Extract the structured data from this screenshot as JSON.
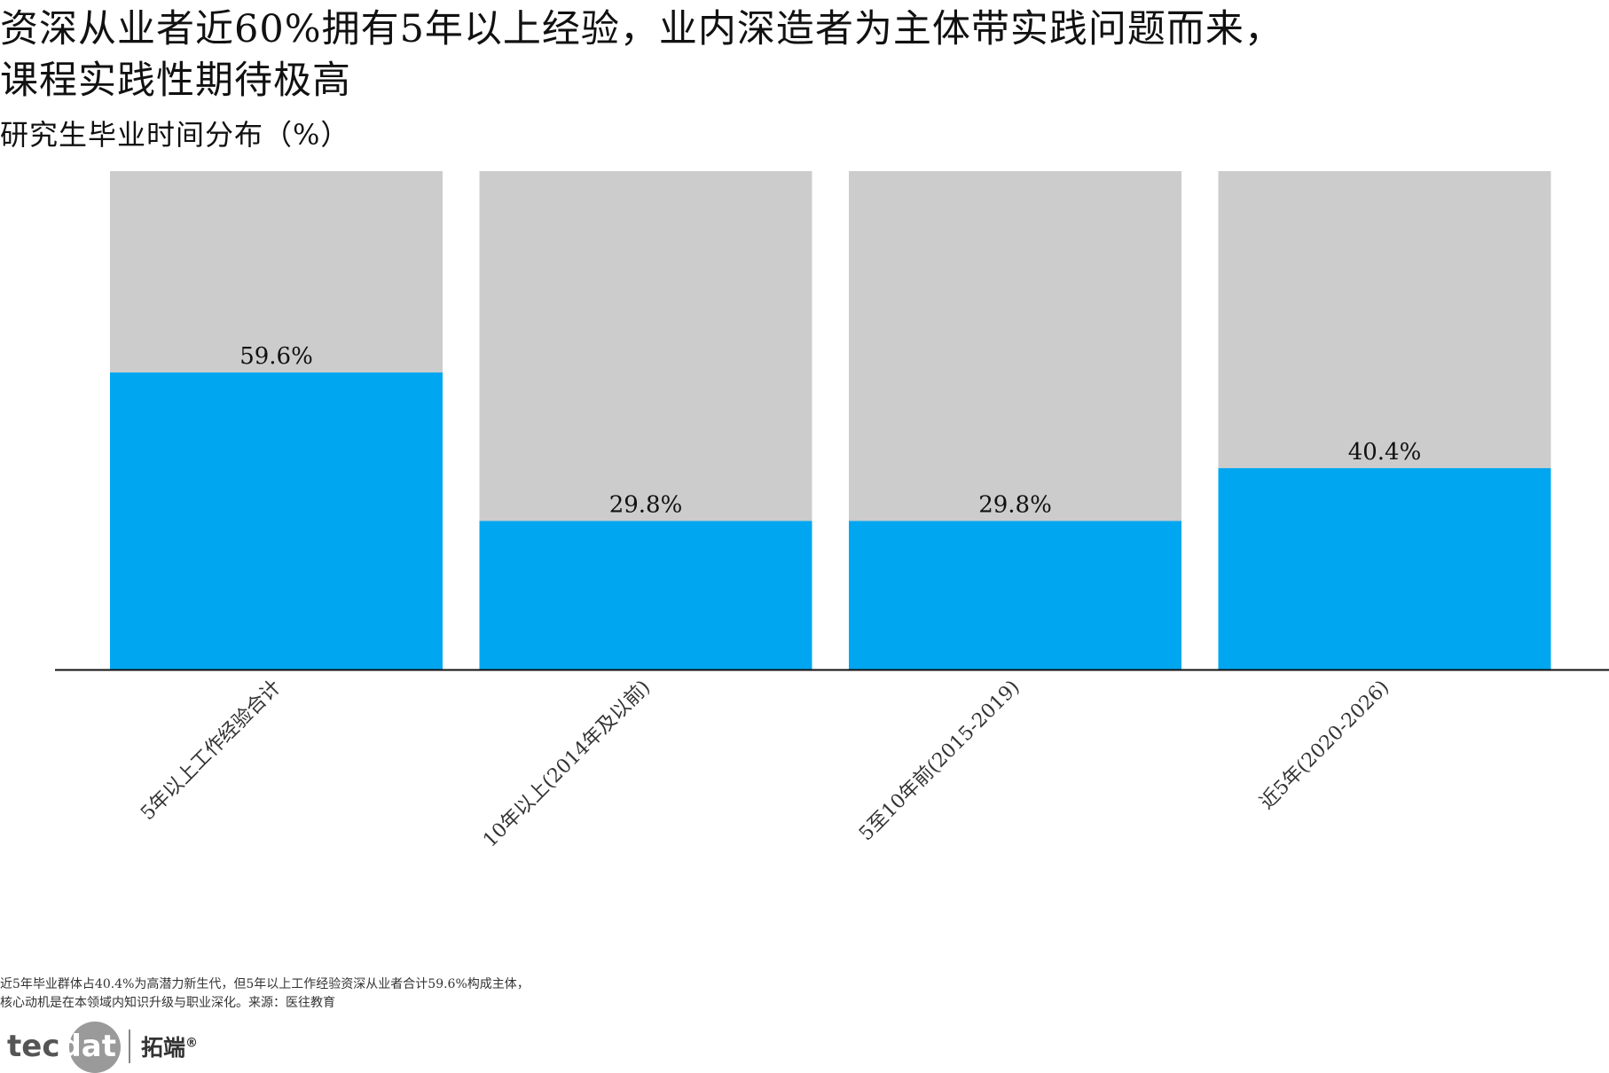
{
  "title": {
    "line1": "资深从业者近60%拥有5年以上经验，业内深造者为主体带实践问题而来，",
    "line2": "课程实践性期待极高"
  },
  "subtitle": "研究生毕业时间分布（%）",
  "colors": {
    "bar_fill": "#00A7F0",
    "bar_background": "#CCCCCC",
    "axis_line": "#111111"
  },
  "chart_data": {
    "type": "bar",
    "stacked_to_100": true,
    "categories": [
      "5年以上工作经验合计",
      "10年以上(2014年及以前)",
      "5至10年前(2015-2019)",
      "近5年(2020-2026)"
    ],
    "values": [
      59.6,
      29.8,
      29.8,
      40.4
    ],
    "data_labels": [
      "59.6%",
      "29.8%",
      "29.8%",
      "40.4%"
    ],
    "ylim": [
      0,
      100
    ],
    "xlabel": "",
    "ylabel": "",
    "grid": false,
    "legend": "none",
    "x_tick_rotation_deg": -45
  },
  "footnote": {
    "line1": "近5年毕业群体占40.4%为高潜力新生代，但5年以上工作经验资深从业者合计59.6%构成主体，",
    "line2": "核心动机是在本领域内知识升级与职业深化。来源：医往教育"
  },
  "logo": {
    "word_tec": "tec",
    "word_dat": "dat",
    "chinese": "拓端",
    "registered": "®"
  }
}
